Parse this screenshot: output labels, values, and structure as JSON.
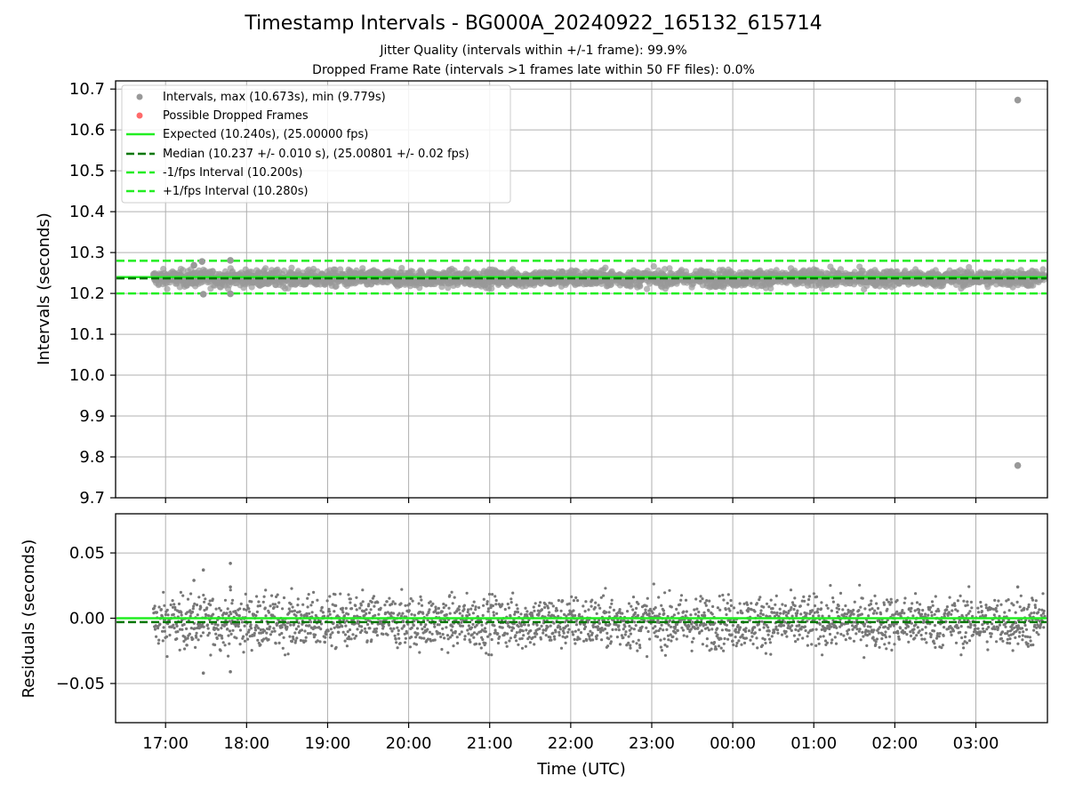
{
  "chart_data": [
    {
      "type": "scatter",
      "title": "Timestamp Intervals - BG000A_20240922_165132_615714",
      "subtitles": [
        "Jitter Quality (intervals within +/-1 frame): 99.9%",
        "Dropped Frame Rate (intervals >1 frames late within 50 FF files): 0.0%"
      ],
      "ylabel": "Intervals (seconds)",
      "ylim": [
        9.7,
        10.72
      ],
      "yticks": [
        "10.7",
        "10.6",
        "10.5",
        "10.4",
        "10.3",
        "10.2",
        "10.1",
        "10.0",
        "9.9",
        "9.8",
        "9.7"
      ],
      "grid": true,
      "legend_position": "upper-left",
      "legend": [
        {
          "label": "Intervals, max (10.673s), min (9.779s)",
          "marker": "dot",
          "color": "#999999"
        },
        {
          "label": "Possible Dropped Frames",
          "marker": "dot",
          "color": "#ff6a6a"
        },
        {
          "label": "Expected (10.240s), (25.00000 fps)",
          "marker": "solid-line",
          "color": "#22ee22"
        },
        {
          "label": "Median (10.237 +/- 0.010 s), (25.00801 +/- 0.02 fps)",
          "marker": "dashed-line",
          "color": "#007700"
        },
        {
          "label": "-1/fps Interval (10.200s)",
          "marker": "dashed-line",
          "color": "#22ee22"
        },
        {
          "label": "+1/fps Interval (10.280s)",
          "marker": "dashed-line",
          "color": "#22ee22"
        }
      ],
      "reference_lines": {
        "expected": 10.24,
        "median": 10.237,
        "lower_bound": 10.2,
        "upper_bound": 10.28
      },
      "series": [
        {
          "name": "Intervals",
          "x_start": "2024-09-22 16:51",
          "x_end": "2024-09-23 03:51",
          "center": 10.237,
          "spread": 0.01,
          "color": "#999999"
        }
      ],
      "outliers": [
        {
          "x": "2024-09-23 03:31",
          "y": 10.673
        },
        {
          "x": "2024-09-23 03:31",
          "y": 9.779
        },
        {
          "x": "2024-09-22 17:48",
          "y": 10.281
        },
        {
          "x": "2024-09-22 17:21",
          "y": 10.269
        },
        {
          "x": "2024-09-22 17:27",
          "y": 10.278
        },
        {
          "x": "2024-09-22 17:28",
          "y": 10.198
        },
        {
          "x": "2024-09-22 17:48",
          "y": 10.199
        }
      ]
    },
    {
      "type": "scatter",
      "ylabel": "Residuals (seconds)",
      "xlabel": "Time (UTC)",
      "ylim": [
        -0.08,
        0.08
      ],
      "yticks": [
        "0.05",
        "0.00",
        "−0.05"
      ],
      "xticks": [
        "17:00",
        "18:00",
        "19:00",
        "20:00",
        "21:00",
        "22:00",
        "23:00",
        "00:00",
        "01:00",
        "02:00",
        "03:00"
      ],
      "grid": true,
      "reference_lines": {
        "expected": 0.0,
        "median": -0.003
      },
      "series": [
        {
          "name": "Residuals",
          "x_start": "2024-09-22 16:51",
          "x_end": "2024-09-23 03:51",
          "center": -0.003,
          "spread": 0.01,
          "color": "#777777"
        }
      ],
      "outliers": [
        {
          "x": "2024-09-22 17:28",
          "y": 0.037
        },
        {
          "x": "2024-09-22 17:48",
          "y": 0.042
        },
        {
          "x": "2024-09-22 17:28",
          "y": -0.042
        },
        {
          "x": "2024-09-22 17:48",
          "y": -0.041
        },
        {
          "x": "2024-09-22 17:21",
          "y": 0.029
        },
        {
          "x": "2024-09-22 17:48",
          "y": 0.024
        },
        {
          "x": "2024-09-23 03:31",
          "y": 0.024
        }
      ]
    }
  ]
}
